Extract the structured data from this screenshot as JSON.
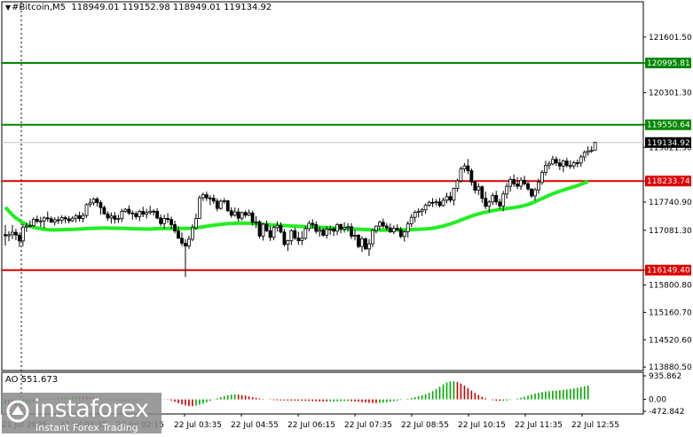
{
  "header": {
    "symbol": "#Bitcoin,M5",
    "ohlc": "118949.01 119152.98 118949.01 119134.92"
  },
  "colors": {
    "bull": "#000000",
    "bear": "#000000",
    "ma": "#22ee22",
    "resistance": "#008800",
    "support": "#dd0000",
    "ao_up": "#00aa00",
    "ao_down": "#cc0000",
    "grid_sep": "#000000"
  },
  "logo": {
    "brand": "instaforex",
    "sub": "Instant Forex Trading"
  },
  "ao": {
    "label": "AO 551.673",
    "tick_top": "935.862",
    "tick_zero": "0.00",
    "tick_bottom": "-472.842"
  },
  "chart_data": {
    "type": "candlestick",
    "symbol": "#Bitcoin",
    "timeframe": "M5",
    "ylim": [
      113800,
      122200
    ],
    "price_ticks": [
      "121601.50",
      "120995.81",
      "120301.30",
      "119550.64",
      "119021.30",
      "118233.74",
      "117740.90",
      "117081.30",
      "116149.40",
      "115800.80",
      "115160.70",
      "114520.60",
      "113880.50"
    ],
    "time_labels": [
      "21 Jul 2025",
      "22 Jul 01:35",
      "22 Jul 02:15",
      "22 Jul 03:35",
      "22 Jul 04:55",
      "22 Jul 06:15",
      "22 Jul 07:35",
      "22 Jul 08:55",
      "22 Jul 10:15",
      "22 Jul 11:35",
      "22 Jul 12:55"
    ],
    "horizontal_levels": [
      {
        "value": 120995.81,
        "label": "120995.81",
        "role": "resistance"
      },
      {
        "value": 119550.64,
        "label": "119550.64",
        "role": "resistance"
      },
      {
        "value": 118233.74,
        "label": "118233.74",
        "role": "support"
      },
      {
        "value": 116149.4,
        "label": "116149.40",
        "role": "support"
      }
    ],
    "current_price": {
      "value": 119134.92,
      "label": "119134.92"
    },
    "candles": [
      [
        116981,
        117201,
        116721,
        116952
      ],
      [
        116952,
        117060,
        116826,
        116977
      ],
      [
        116977,
        117204,
        116876,
        117035
      ],
      [
        117035,
        117118,
        116848,
        116970
      ],
      [
        116970,
        117028,
        116692,
        116833
      ],
      [
        116833,
        117226,
        116709,
        117156
      ],
      [
        117156,
        117255,
        117041,
        117181
      ],
      [
        117181,
        117313,
        117145,
        117190
      ],
      [
        117190,
        117384,
        117158,
        117339
      ],
      [
        117339,
        117426,
        117240,
        117292
      ],
      [
        117292,
        117396,
        117161,
        117299
      ],
      [
        117299,
        117409,
        117129,
        117372
      ],
      [
        117372,
        117522,
        117276,
        117352
      ],
      [
        117352,
        117404,
        117256,
        117271
      ],
      [
        117271,
        117388,
        117195,
        117327
      ],
      [
        117327,
        117408,
        117227,
        117319
      ],
      [
        117319,
        117435,
        117233,
        117378
      ],
      [
        117378,
        117425,
        117247,
        117346
      ],
      [
        117346,
        117415,
        117245,
        117305
      ],
      [
        117305,
        117412,
        117279,
        117362
      ],
      [
        117362,
        117465,
        117263,
        117424
      ],
      [
        117424,
        117516,
        117287,
        117358
      ],
      [
        117358,
        117491,
        117268,
        117429
      ],
      [
        117429,
        117714,
        117371,
        117683
      ],
      [
        117683,
        117827,
        117623,
        117723
      ],
      [
        117723,
        117839,
        117660,
        117813
      ],
      [
        117813,
        117859,
        117637,
        117729
      ],
      [
        117729,
        117782,
        117448,
        117612
      ],
      [
        117612,
        117662,
        117447,
        117466
      ],
      [
        117466,
        117524,
        117304,
        117369
      ],
      [
        117369,
        117499,
        117239,
        117416
      ],
      [
        117416,
        117505,
        117237,
        117340
      ],
      [
        117340,
        117443,
        117252,
        117353
      ],
      [
        117353,
        117585,
        117275,
        117524
      ],
      [
        117524,
        117597,
        117494,
        117573
      ],
      [
        117573,
        117666,
        117436,
        117486
      ],
      [
        117486,
        117548,
        117332,
        117470
      ],
      [
        117470,
        117524,
        117337,
        117400
      ],
      [
        117400,
        117567,
        117294,
        117525
      ],
      [
        117525,
        117631,
        117387,
        117455
      ],
      [
        117455,
        117579,
        117359,
        117497
      ],
      [
        117497,
        117653,
        117448,
        117528
      ],
      [
        117528,
        117573,
        117423,
        117526
      ],
      [
        117526,
        117599,
        117339,
        117369
      ],
      [
        117369,
        117449,
        117175,
        117238
      ],
      [
        117238,
        117445,
        117118,
        117359
      ],
      [
        117359,
        117481,
        117254,
        117334
      ],
      [
        117334,
        117401,
        117111,
        117212
      ],
      [
        117212,
        117307,
        117006,
        117065
      ],
      [
        117065,
        117176,
        116881,
        116896
      ],
      [
        116896,
        117030,
        116711,
        116780
      ],
      [
        116780,
        116873,
        115987,
        116713
      ],
      [
        116713,
        116953,
        116644,
        116873
      ],
      [
        116873,
        117224,
        116825,
        117141
      ],
      [
        117141,
        117472,
        117094,
        117359
      ],
      [
        117359,
        117898,
        117344,
        117843
      ],
      [
        117843,
        117965,
        117769,
        117914
      ],
      [
        117914,
        117986,
        117768,
        117837
      ],
      [
        117837,
        117904,
        117670,
        117831
      ],
      [
        117831,
        117917,
        117701,
        117765
      ],
      [
        117765,
        117831,
        117525,
        117593
      ],
      [
        117593,
        117808,
        117563,
        117763
      ],
      [
        117763,
        117833,
        117701,
        117772
      ],
      [
        117772,
        117792,
        117506,
        117539
      ],
      [
        117539,
        117619,
        117377,
        117433
      ],
      [
        117433,
        117614,
        117402,
        117511
      ],
      [
        117511,
        117602,
        117286,
        117364
      ],
      [
        117364,
        117520,
        117313,
        117496
      ],
      [
        117496,
        117542,
        117374,
        117434
      ],
      [
        117434,
        117567,
        117411,
        117486
      ],
      [
        117486,
        117539,
        117191,
        117265
      ],
      [
        117265,
        117413,
        117134,
        117279
      ],
      [
        117279,
        117321,
        116892,
        116945
      ],
      [
        116945,
        117248,
        116841,
        117223
      ],
      [
        117223,
        117309,
        117042,
        117068
      ],
      [
        117068,
        117175,
        116832,
        116917
      ],
      [
        116917,
        117191,
        116847,
        117145
      ],
      [
        117145,
        117292,
        117051,
        117196
      ],
      [
        117196,
        117269,
        117008,
        117039
      ],
      [
        117039,
        117112,
        116698,
        116752
      ],
      [
        116752,
        116862,
        116596,
        116839
      ],
      [
        116839,
        117112,
        116738,
        117073
      ],
      [
        117073,
        117147,
        116856,
        116899
      ],
      [
        116899,
        117047,
        116743,
        116839
      ],
      [
        116839,
        117064,
        116736,
        116893
      ],
      [
        116893,
        117181,
        116855,
        117120
      ],
      [
        117120,
        117306,
        117051,
        117244
      ],
      [
        117244,
        117340,
        117122,
        117214
      ],
      [
        117214,
        117287,
        117002,
        117057
      ],
      [
        117057,
        117165,
        116930,
        117087
      ],
      [
        117087,
        117139,
        116933,
        116966
      ],
      [
        116966,
        117176,
        116884,
        117105
      ],
      [
        117105,
        117195,
        116975,
        117111
      ],
      [
        117111,
        117162,
        116946,
        117061
      ],
      [
        117061,
        117251,
        116967,
        117214
      ],
      [
        117214,
        117239,
        117012,
        117110
      ],
      [
        117110,
        117269,
        117025,
        117149
      ],
      [
        117149,
        117246,
        117047,
        117165
      ],
      [
        117165,
        117248,
        116878,
        116944
      ],
      [
        116944,
        117092,
        116846,
        116964
      ],
      [
        116964,
        116995,
        116660,
        116701
      ],
      [
        116701,
        116946,
        116572,
        116883
      ],
      [
        116883,
        116917,
        116621,
        116645
      ],
      [
        116645,
        116876,
        116480,
        116765
      ],
      [
        116765,
        117110,
        116686,
        117079
      ],
      [
        117079,
        117197,
        117008,
        117179
      ],
      [
        117179,
        117305,
        117091,
        117269
      ],
      [
        117269,
        117356,
        117130,
        117181
      ],
      [
        117181,
        117250,
        117076,
        117137
      ],
      [
        117137,
        117240,
        117016,
        117045
      ],
      [
        117045,
        117196,
        116987,
        117127
      ],
      [
        117127,
        117223,
        117063,
        117092
      ],
      [
        117092,
        117161,
        116894,
        116937
      ],
      [
        116937,
        117080,
        116818,
        117045
      ],
      [
        117045,
        117294,
        116911,
        117231
      ],
      [
        117231,
        117460,
        117162,
        117384
      ],
      [
        117384,
        117547,
        117268,
        117503
      ],
      [
        117503,
        117594,
        117383,
        117525
      ],
      [
        117525,
        117605,
        117414,
        117560
      ],
      [
        117560,
        117708,
        117472,
        117665
      ],
      [
        117665,
        117774,
        117630,
        117735
      ],
      [
        117735,
        117833,
        117625,
        117726
      ],
      [
        117726,
        117814,
        117652,
        117747
      ],
      [
        117747,
        117839,
        117617,
        117660
      ],
      [
        117660,
        117846,
        117635,
        117784
      ],
      [
        117784,
        117959,
        117712,
        117870
      ],
      [
        117870,
        117980,
        117729,
        117786
      ],
      [
        117786,
        118078,
        117664,
        118063
      ],
      [
        118063,
        118290,
        117977,
        118239
      ],
      [
        118239,
        118574,
        118200,
        118517
      ],
      [
        118517,
        118654,
        118436,
        118587
      ],
      [
        118587,
        118748,
        118394,
        118476
      ],
      [
        118476,
        118527,
        118126,
        118208
      ],
      [
        118208,
        118235,
        117944,
        118019
      ],
      [
        118019,
        118182,
        117908,
        118099
      ],
      [
        118099,
        118130,
        117720,
        117829
      ],
      [
        117829,
        117986,
        117576,
        117642
      ],
      [
        117642,
        117788,
        117501,
        117745
      ],
      [
        117745,
        117960,
        117670,
        117897
      ],
      [
        117897,
        118007,
        117677,
        117745
      ],
      [
        117745,
        117817,
        117581,
        117648
      ],
      [
        117648,
        118005,
        117526,
        117930
      ],
      [
        117930,
        118185,
        117824,
        118110
      ],
      [
        118110,
        118340,
        117985,
        118273
      ],
      [
        118273,
        118387,
        118097,
        118166
      ],
      [
        118166,
        118322,
        118045,
        118113
      ],
      [
        118113,
        118325,
        118028,
        118253
      ],
      [
        118253,
        118356,
        118124,
        118171
      ],
      [
        118171,
        118214,
        118003,
        118049
      ],
      [
        118049,
        118060,
        117842,
        117885
      ],
      [
        117885,
        118078,
        117777,
        118028
      ],
      [
        118028,
        118288,
        117931,
        118200
      ],
      [
        118200,
        118491,
        118145,
        118437
      ],
      [
        118437,
        118710,
        118357,
        118597
      ],
      [
        118597,
        118705,
        118508,
        118636
      ],
      [
        118636,
        118826,
        118600,
        118740
      ],
      [
        118740,
        118808,
        118589,
        118656
      ],
      [
        118656,
        118754,
        118487,
        118584
      ],
      [
        118584,
        118740,
        118440,
        118701
      ],
      [
        118701,
        118778,
        118555,
        118596
      ],
      [
        118596,
        118716,
        118518,
        118588
      ],
      [
        118588,
        118706,
        118517,
        118662
      ],
      [
        118662,
        118736,
        118558,
        118657
      ],
      [
        118657,
        118850,
        118568,
        118799
      ],
      [
        118799,
        118948,
        118697,
        118904
      ],
      [
        118904,
        119045,
        118827,
        118938
      ],
      [
        118938,
        119048,
        118893,
        118949
      ],
      [
        118949,
        119153,
        118949,
        119135
      ]
    ],
    "ma": [
      117620,
      117530,
      117440,
      117370,
      117310,
      117260,
      117215,
      117180,
      117150,
      117135,
      117120,
      117105,
      117095,
      117090,
      117090,
      117092,
      117096,
      117098,
      117100,
      117102,
      117105,
      117110,
      117115,
      117120,
      117125,
      117128,
      117130,
      117132,
      117133,
      117133,
      117132,
      117130,
      117128,
      117126,
      117123,
      117120,
      117117,
      117115,
      117113,
      117112,
      117112,
      117112,
      117115,
      117118,
      117120,
      117122,
      117124,
      117124,
      117124,
      117124,
      117124,
      117124,
      117126,
      117132,
      117140,
      117150,
      117162,
      117176,
      117188,
      117200,
      117210,
      117220,
      117228,
      117235,
      117240,
      117244,
      117247,
      117248,
      117248,
      117245,
      117240,
      117235,
      117228,
      117222,
      117215,
      117210,
      117205,
      117200,
      117195,
      117190,
      117186,
      117182,
      117178,
      117174,
      117170,
      117166,
      117162,
      117158,
      117154,
      117150,
      117146,
      117142,
      117138,
      117134,
      117130,
      117126,
      117122,
      117118,
      117114,
      117110,
      117106,
      117102,
      117098,
      117094,
      117090,
      117087,
      117086,
      117086,
      117086,
      117087,
      117088,
      117089,
      117091,
      117093,
      117095,
      117097,
      117100,
      117103,
      117107,
      117112,
      117120,
      117130,
      117145,
      117162,
      117182,
      117205,
      117230,
      117258,
      117288,
      117320,
      117352,
      117384,
      117414,
      117441,
      117465,
      117487,
      117506,
      117524,
      117540,
      117555,
      117568,
      117580,
      117590,
      117600,
      117612,
      117625,
      117640,
      117660,
      117685,
      117715,
      117750,
      117788,
      117826,
      117864,
      117900,
      117934,
      117966,
      117996,
      118024,
      118050,
      118075,
      118100,
      118126,
      118155,
      118188,
      118222
    ],
    "ao": {
      "range": [
        -472.842,
        935.862
      ],
      "values": [
        -180,
        -205,
        -225,
        -240,
        -235,
        -215,
        -185,
        -150,
        -115,
        -80,
        -48,
        -22,
        2,
        22,
        40,
        58,
        72,
        85,
        96,
        103,
        108,
        110,
        106,
        98,
        85,
        70,
        52,
        34,
        14,
        -8,
        -28,
        -44,
        -56,
        -62,
        -64,
        -60,
        -54,
        -45,
        -34,
        -22,
        -10,
        2,
        12,
        18,
        18,
        10,
        -12,
        -48,
        -95,
        -150,
        -200,
        -240,
        -265,
        -270,
        -252,
        -215,
        -170,
        -115,
        -60,
        -8,
        42,
        90,
        132,
        165,
        186,
        195,
        190,
        172,
        148,
        120,
        92,
        65,
        40,
        18,
        -2,
        -18,
        -30,
        -38,
        -42,
        -44,
        -46,
        -48,
        -50,
        -52,
        -55,
        -60,
        -66,
        -72,
        -78,
        -82,
        -85,
        -86,
        -85,
        -82,
        -78,
        -74,
        -72,
        -72,
        -76,
        -84,
        -96,
        -110,
        -124,
        -136,
        -144,
        -146,
        -140,
        -128,
        -112,
        -92,
        -70,
        -46,
        -22,
        2,
        28,
        56,
        88,
        124,
        164,
        208,
        262,
        328,
        410,
        505,
        598,
        672,
        715,
        722,
        692,
        630,
        545,
        448,
        350,
        258,
        175,
        104,
        46,
        2,
        -30,
        -50,
        -58,
        -56,
        -44,
        -24,
        0,
        30,
        65,
        104,
        146,
        188,
        228,
        264,
        292,
        312,
        326,
        338,
        350,
        362,
        376,
        392,
        410,
        432,
        458,
        488,
        520,
        552
      ]
    }
  }
}
